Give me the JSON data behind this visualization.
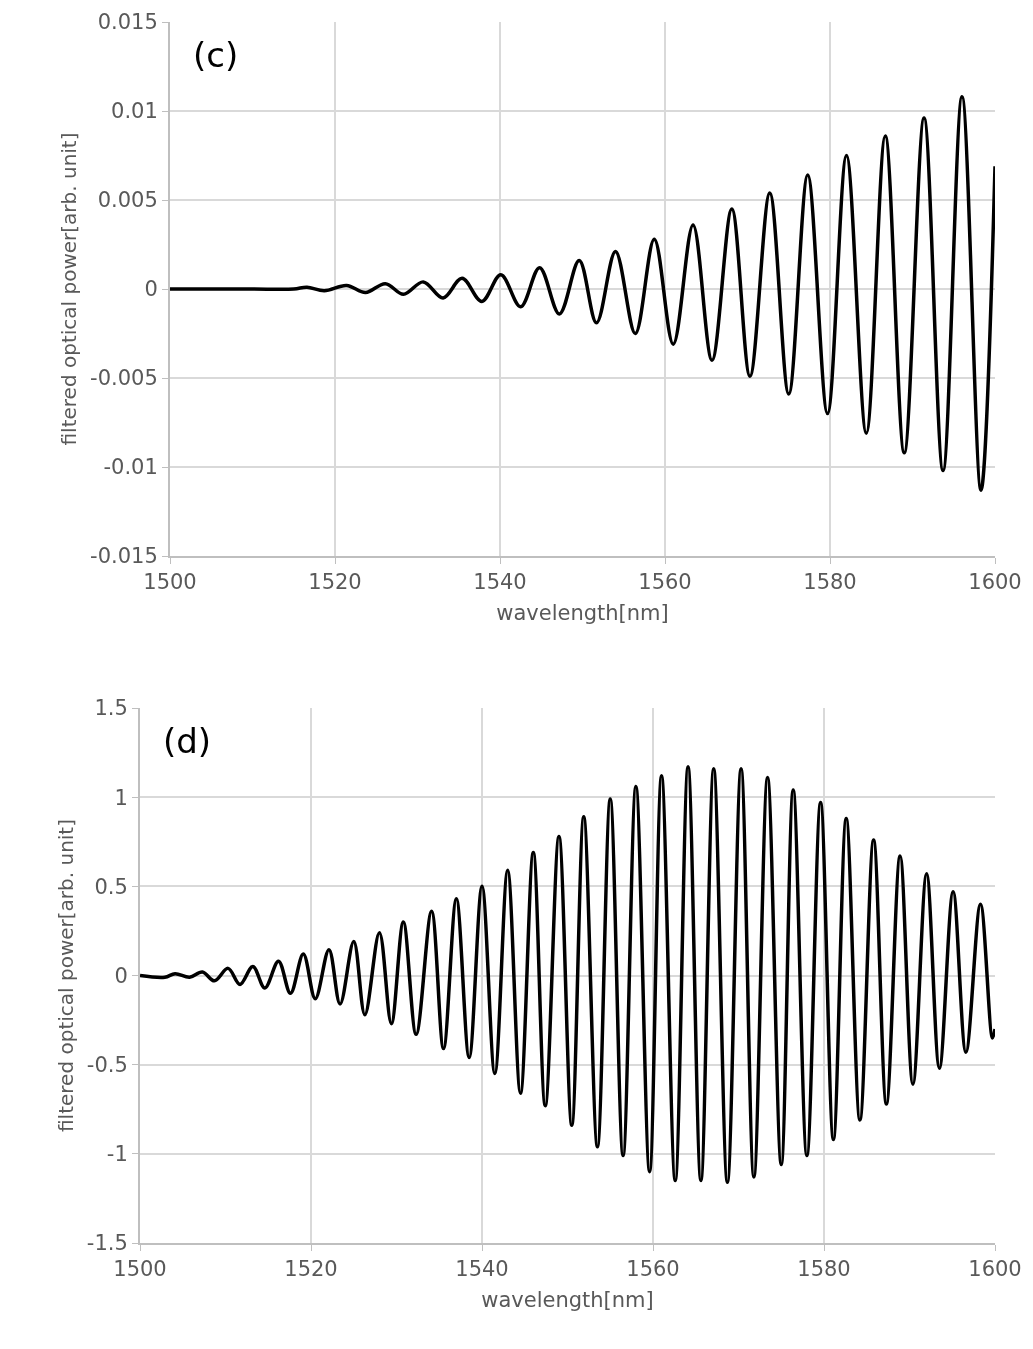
{
  "chart_data": [
    {
      "type": "line",
      "xlabel": "wavelength[nm]",
      "ylabel": "filtered optical power[arb. unit]",
      "annotations": [
        "(c)"
      ],
      "xlim": [
        1500,
        1600
      ],
      "xticks": [
        1500,
        1520,
        1540,
        1560,
        1580,
        1600
      ],
      "ylim": [
        -0.015,
        0.015
      ],
      "yticks": [
        -0.015,
        -0.01,
        -0.005,
        0,
        0.005,
        0.01,
        0.015
      ],
      "grid": true,
      "marker": "none",
      "line_style": "solid",
      "series": [
        {
          "color": "#000000",
          "x": [
            1500,
            1505,
            1510,
            1515,
            1516.6,
            1518.7,
            1521.4,
            1523.7,
            1526.1,
            1528.3,
            1530.7,
            1533.1,
            1535.4,
            1537.8,
            1540.1,
            1542.5,
            1544.8,
            1547.2,
            1549.6,
            1551.7,
            1554.0,
            1556.4,
            1558.7,
            1561.0,
            1563.4,
            1565.7,
            1568.1,
            1570.3,
            1572.7,
            1575.0,
            1577.3,
            1579.7,
            1582.0,
            1584.4,
            1586.7,
            1589.0,
            1591.4,
            1593.7,
            1596.0,
            1598.3,
            1600
          ],
          "values": [
            0,
            0,
            0,
            0,
            0.0001,
            -0.0001,
            0.0002,
            -0.0002,
            0.0003,
            -0.0003,
            0.0004,
            -0.0005,
            0.0006,
            -0.0007,
            0.0008,
            -0.001,
            0.0012,
            -0.0014,
            0.0016,
            -0.0019,
            0.0021,
            -0.0025,
            0.0028,
            -0.0031,
            0.0036,
            -0.004,
            0.0045,
            -0.0049,
            0.0054,
            -0.0059,
            0.0064,
            -0.007,
            0.0075,
            -0.0081,
            0.0086,
            -0.0092,
            0.0096,
            -0.0102,
            0.0108,
            -0.0113,
            0.0069
          ]
        }
      ]
    },
    {
      "type": "line",
      "xlabel": "wavelength[nm]",
      "ylabel": "filtered optical power[arb. unit]",
      "annotations": [
        "(d)"
      ],
      "xlim": [
        1500,
        1600
      ],
      "xticks": [
        1500,
        1520,
        1540,
        1560,
        1580,
        1600
      ],
      "ylim": [
        -1.5,
        1.5
      ],
      "yticks": [
        -1.5,
        -1,
        -0.5,
        0,
        0.5,
        1,
        1.5
      ],
      "grid": true,
      "marker": "none",
      "line_style": "solid",
      "series": [
        {
          "color": "#000000",
          "x": [
            1500,
            1502.9,
            1504.1,
            1505.8,
            1507.3,
            1508.7,
            1510.3,
            1511.7,
            1513.2,
            1514.6,
            1516.2,
            1517.6,
            1519.1,
            1520.5,
            1522.1,
            1523.4,
            1525.0,
            1526.3,
            1528.0,
            1529.4,
            1530.8,
            1532.3,
            1534.1,
            1535.5,
            1537.0,
            1538.5,
            1540.0,
            1541.5,
            1543.0,
            1544.5,
            1546.0,
            1547.4,
            1549.0,
            1550.5,
            1551.9,
            1553.5,
            1555.0,
            1556.5,
            1558.0,
            1559.6,
            1561.0,
            1562.6,
            1564.1,
            1565.6,
            1567.1,
            1568.7,
            1570.3,
            1571.8,
            1573.4,
            1575.0,
            1576.4,
            1578.0,
            1579.6,
            1581.1,
            1582.6,
            1584.2,
            1585.8,
            1587.3,
            1588.9,
            1590.4,
            1592.0,
            1593.5,
            1595.1,
            1596.6,
            1598.3,
            1599.7,
            1600
          ],
          "values": [
            0,
            -0.01,
            0.01,
            -0.01,
            0.02,
            -0.03,
            0.04,
            -0.05,
            0.05,
            -0.07,
            0.08,
            -0.1,
            0.12,
            -0.13,
            0.145,
            -0.16,
            0.19,
            -0.22,
            0.24,
            -0.27,
            0.3,
            -0.33,
            0.36,
            -0.41,
            0.43,
            -0.46,
            0.5,
            -0.55,
            0.59,
            -0.66,
            0.69,
            -0.73,
            0.78,
            -0.84,
            0.89,
            -0.96,
            0.99,
            -1.01,
            1.06,
            -1.1,
            1.12,
            -1.15,
            1.17,
            -1.15,
            1.16,
            -1.16,
            1.16,
            -1.13,
            1.11,
            -1.06,
            1.04,
            -1.01,
            0.97,
            -0.92,
            0.88,
            -0.81,
            0.76,
            -0.72,
            0.67,
            -0.61,
            0.57,
            -0.52,
            0.47,
            -0.43,
            0.4,
            -0.35,
            -0.3
          ]
        }
      ]
    }
  ]
}
